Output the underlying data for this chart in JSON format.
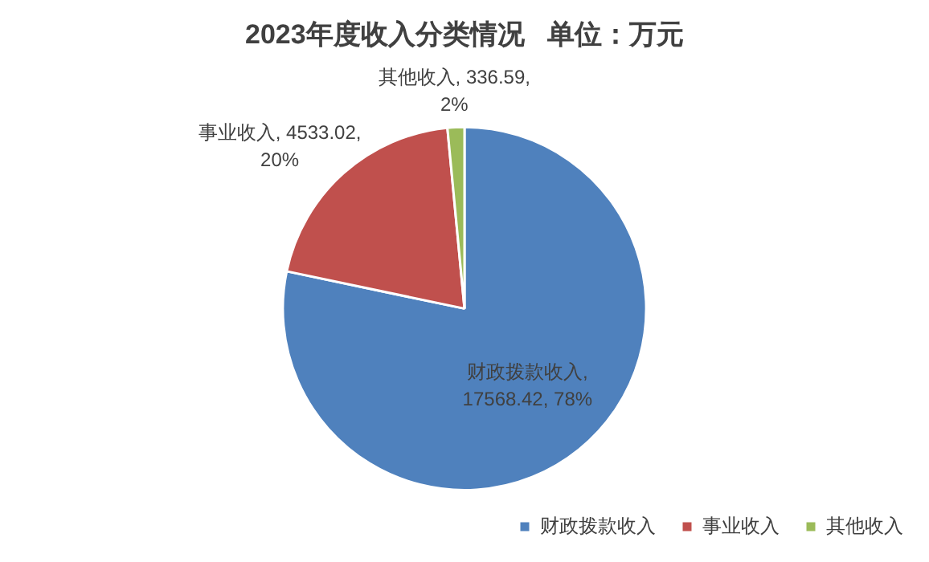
{
  "chart_data": {
    "type": "pie",
    "title": "2023年度收入分类情况   单位：万元",
    "categories": [
      "财政拨款收入",
      "事业收入",
      "其他收入"
    ],
    "values": [
      17568.42,
      4533.02,
      336.59
    ],
    "colors": [
      "#4f81bd",
      "#c0504d",
      "#9bbb59"
    ],
    "value_labels": [
      "财政拨款收入, 17568.42, 78%",
      "事业收入, 4533.02, 20%",
      "其他收入, 336.59, 2%"
    ],
    "legend": "bottom right"
  }
}
